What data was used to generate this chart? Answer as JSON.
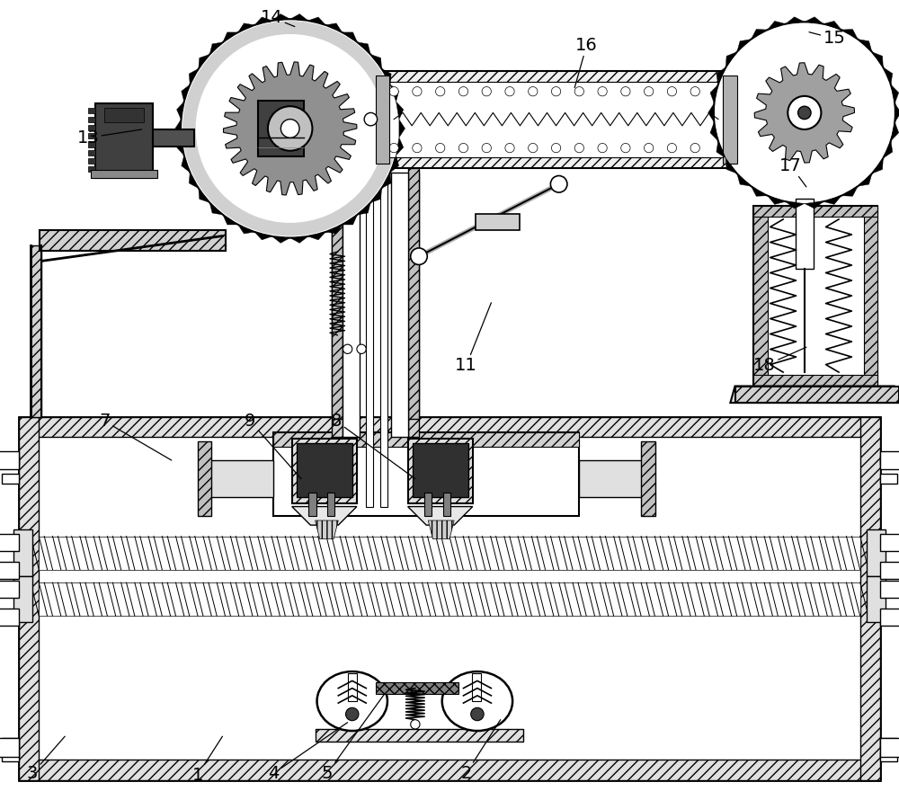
{
  "bg_color": "#ffffff",
  "figsize": [
    10.0,
    8.9
  ],
  "dpi": 100,
  "labels": {
    "1": {
      "xa": 255,
      "ya": 808,
      "xt": 228,
      "yt": 850
    },
    "2": {
      "xa": 555,
      "ya": 790,
      "xt": 518,
      "yt": 848
    },
    "3": {
      "xa": 85,
      "ya": 808,
      "xt": 50,
      "yt": 848
    },
    "4": {
      "xa": 390,
      "ya": 793,
      "xt": 310,
      "yt": 848
    },
    "5": {
      "xa": 430,
      "ya": 762,
      "xt": 368,
      "yt": 848
    },
    "7": {
      "xa": 200,
      "ya": 510,
      "xt": 128,
      "yt": 468
    },
    "8": {
      "xa": 463,
      "ya": 530,
      "xt": 378,
      "yt": 468
    },
    "9": {
      "xa": 340,
      "ya": 530,
      "xt": 285,
      "yt": 468
    },
    "11": {
      "xa": 545,
      "ya": 340,
      "xt": 518,
      "yt": 408
    },
    "13": {
      "xa": 168,
      "ya": 153,
      "xt": 110,
      "yt": 162
    },
    "14": {
      "xa": 333,
      "ya": 42,
      "xt": 308,
      "yt": 32
    },
    "15": {
      "xa": 888,
      "ya": 48,
      "xt": 915,
      "yt": 55
    },
    "16": {
      "xa": 635,
      "ya": 108,
      "xt": 648,
      "yt": 62
    },
    "17": {
      "xa": 885,
      "ya": 215,
      "xt": 868,
      "yt": 192
    },
    "18": {
      "xa": 885,
      "ya": 388,
      "xt": 840,
      "yt": 408
    }
  }
}
